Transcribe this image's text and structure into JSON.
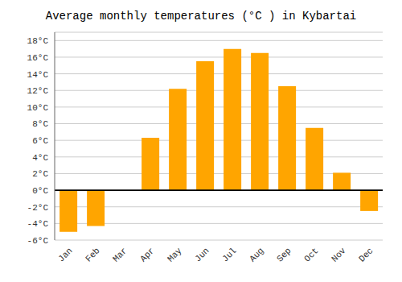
{
  "chart_data": {
    "type": "bar",
    "title": "Average monthly temperatures (°C ) in Kybartai",
    "categories": [
      "Jan",
      "Feb",
      "Mar",
      "Apr",
      "May",
      "Jun",
      "Jul",
      "Aug",
      "Sep",
      "Oct",
      "Nov",
      "Dec"
    ],
    "values": [
      -5.0,
      -4.3,
      0.0,
      6.3,
      12.2,
      15.5,
      17.0,
      16.5,
      12.5,
      7.5,
      2.1,
      -2.5
    ],
    "color": "#FFA500",
    "ylim": [
      -6,
      19
    ],
    "yticks": [
      {
        "value": -6,
        "label": "-6°C"
      },
      {
        "value": -4,
        "label": "-4°C"
      },
      {
        "value": -2,
        "label": "-2°C"
      },
      {
        "value": 0,
        "label": "0°C"
      },
      {
        "value": 2,
        "label": "2°C"
      },
      {
        "value": 4,
        "label": "4°C"
      },
      {
        "value": 6,
        "label": "6°C"
      },
      {
        "value": 8,
        "label": "8°C"
      },
      {
        "value": 10,
        "label": "10°C"
      },
      {
        "value": 12,
        "label": "12°C"
      },
      {
        "value": 14,
        "label": "14°C"
      },
      {
        "value": 16,
        "label": "16°C"
      },
      {
        "value": 18,
        "label": "18°C"
      }
    ],
    "grid": true
  }
}
